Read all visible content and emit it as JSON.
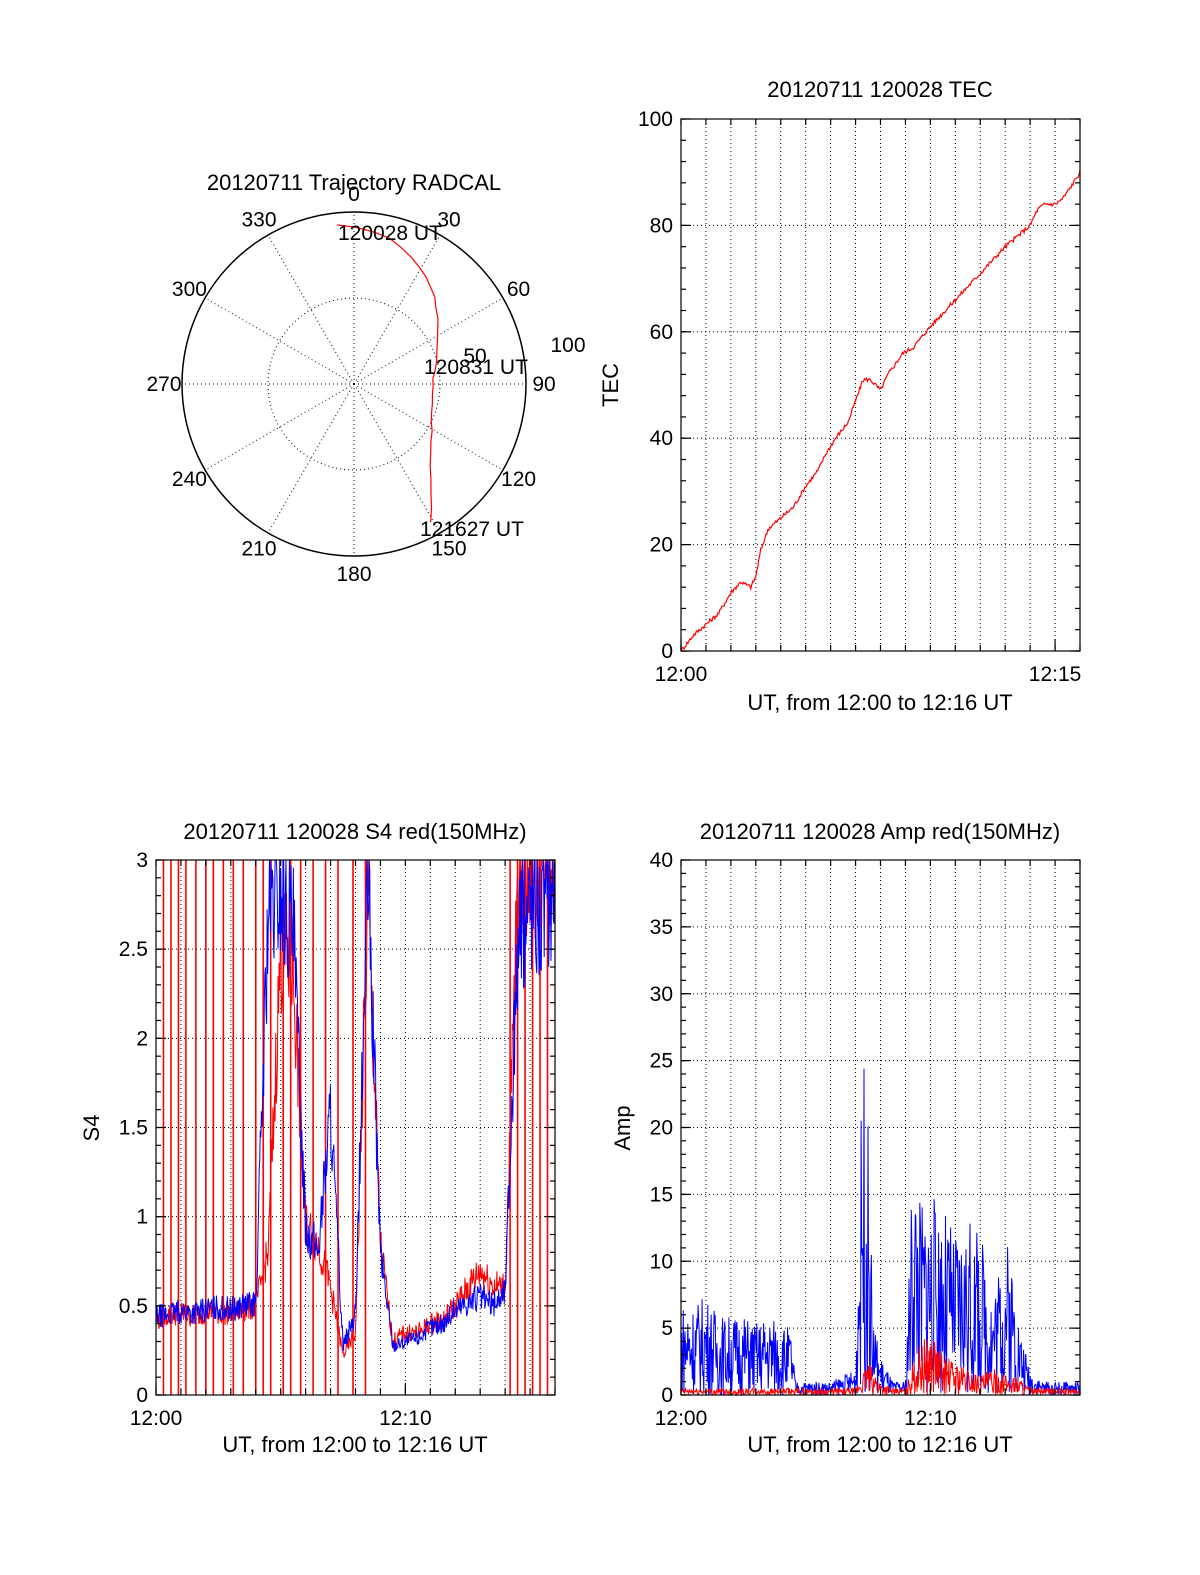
{
  "colors": {
    "red": "#ff0000",
    "blue": "#0000ff",
    "axis": "#000000",
    "background": "#ffffff"
  },
  "chart_data": [
    {
      "type": "polar",
      "id": "trajectory",
      "title": "20120711 Trajectory RADCAL",
      "angle_labels": [
        "0",
        "30",
        "60",
        "90",
        "120",
        "150",
        "180",
        "210",
        "240",
        "270",
        "300",
        "330"
      ],
      "radial_labels": [
        "50",
        "100"
      ],
      "rlim": [
        0,
        100
      ],
      "grid": true,
      "series": [
        {
          "color": "red",
          "azimuth_deg": [
            -6,
            1,
            8,
            14,
            19,
            24,
            29,
            34,
            38,
            43,
            47,
            52,
            57,
            62,
            68,
            74,
            80,
            86,
            92,
            98,
            104,
            110,
            116,
            121,
            127,
            132,
            137,
            141,
            145,
            148,
            151
          ],
          "elevation_r": [
            93,
            91,
            89,
            87,
            84,
            81,
            78,
            75,
            72,
            69,
            65,
            62,
            58,
            55,
            52,
            50,
            48,
            46,
            46,
            46,
            47,
            48,
            50,
            53,
            56,
            60,
            65,
            71,
            78,
            85,
            92
          ]
        }
      ],
      "annotations": [
        "120028 UT",
        "120831 UT",
        "121627 UT"
      ]
    },
    {
      "type": "line",
      "id": "tec",
      "title": "20120711 120028 TEC",
      "xlabel": "UT, from 12:00 to 12:16 UT",
      "ylabel": "TEC",
      "x_tick_labels": [
        "12:00",
        "12:15"
      ],
      "xlim": [
        0,
        16
      ],
      "ylim": [
        0,
        100
      ],
      "y_ticks": [
        0,
        20,
        40,
        60,
        80,
        100
      ],
      "grid": true,
      "series": [
        {
          "color": "red",
          "x": [
            0,
            0.5,
            1,
            1.5,
            2,
            2.4,
            2.8,
            3.0,
            3.2,
            3.5,
            4.0,
            4.5,
            5.0,
            5.5,
            5.8,
            6.2,
            6.7,
            7.0,
            7.3,
            7.6,
            8.0,
            8.3,
            8.6,
            8.9,
            9.3,
            10.0,
            11.0,
            12.0,
            13.0,
            14.0,
            14.3,
            14.6,
            15.0,
            15.3,
            15.6,
            16.0
          ],
          "y": [
            0,
            3,
            5,
            7,
            11,
            13,
            12,
            14,
            19,
            23,
            25,
            27,
            31,
            34,
            37,
            40,
            43,
            47,
            51,
            51,
            49,
            52,
            54,
            56,
            57,
            61,
            66,
            71,
            76,
            80,
            83,
            84,
            84,
            85,
            87,
            90
          ]
        }
      ]
    },
    {
      "type": "line",
      "id": "s4",
      "title": "20120711 120028 S4 red(150MHz)",
      "xlabel": "UT, from 12:00 to 12:16 UT",
      "ylabel": "S4",
      "x_tick_labels": [
        "12:00",
        "12:10"
      ],
      "xlim": [
        0,
        16
      ],
      "ylim": [
        0,
        3
      ],
      "y_tick_labels": [
        "0",
        "0.5",
        "1",
        "1.5",
        "2",
        "2.5",
        "3"
      ],
      "grid": true,
      "series": [
        {
          "color": "red",
          "x": [
            0.0,
            0.5,
            1.0,
            1.5,
            2.0,
            2.5,
            3.0,
            3.5,
            4.0,
            4.5,
            5.0,
            5.5,
            6.0,
            6.5,
            7.0,
            7.5,
            8.0,
            8.5,
            9.0,
            9.5,
            10.0,
            10.5,
            11.0,
            11.5,
            12.0,
            12.5,
            13.0,
            13.5,
            14.0,
            14.5,
            15.0,
            15.5,
            16.0
          ],
          "y": [
            0.42,
            0.45,
            0.46,
            0.44,
            0.47,
            0.46,
            0.46,
            0.48,
            0.5,
            0.8,
            2.5,
            2.4,
            0.95,
            0.85,
            0.6,
            0.22,
            0.35,
            2.8,
            0.85,
            0.3,
            0.35,
            0.35,
            0.4,
            0.42,
            0.5,
            0.6,
            0.7,
            0.62,
            0.6,
            2.8,
            3.0,
            3.0,
            3.0
          ]
        },
        {
          "color": "blue",
          "x": [
            0.0,
            0.5,
            1.0,
            1.5,
            2.0,
            2.5,
            3.0,
            3.5,
            4.0,
            4.5,
            5.0,
            5.5,
            6.0,
            6.5,
            7.0,
            7.5,
            8.0,
            8.5,
            9.0,
            9.5,
            10.0,
            10.5,
            11.0,
            11.5,
            12.0,
            12.5,
            13.0,
            13.5,
            14.0,
            14.5,
            15.0,
            15.5,
            16.0
          ],
          "y": [
            0.44,
            0.45,
            0.47,
            0.46,
            0.48,
            0.49,
            0.48,
            0.5,
            0.51,
            2.7,
            2.8,
            2.6,
            0.95,
            0.8,
            1.6,
            0.28,
            0.45,
            2.9,
            0.8,
            0.28,
            0.3,
            0.32,
            0.38,
            0.4,
            0.48,
            0.52,
            0.55,
            0.5,
            0.58,
            2.5,
            2.8,
            2.7,
            2.9
          ]
        }
      ]
    },
    {
      "type": "line",
      "id": "amp",
      "title": "20120711 120028 Amp red(150MHz)",
      "xlabel": "UT, from 12:00 to 12:16 UT",
      "ylabel": "Amp",
      "x_tick_labels": [
        "12:00",
        "12:10"
      ],
      "xlim": [
        0,
        16
      ],
      "ylim": [
        0,
        40
      ],
      "y_ticks": [
        0,
        5,
        10,
        15,
        20,
        25,
        30,
        35,
        40
      ],
      "grid": true,
      "series": [
        {
          "color": "blue",
          "x": [
            0.0,
            0.5,
            1.0,
            1.5,
            2.0,
            2.5,
            3.0,
            3.5,
            4.0,
            4.4,
            4.6,
            5.0,
            5.5,
            6.0,
            6.5,
            7.0,
            7.3,
            7.5,
            7.7,
            8.0,
            8.5,
            9.0,
            9.3,
            9.6,
            10.0,
            10.5,
            11.0,
            11.5,
            12.0,
            12.5,
            13.0,
            13.3,
            13.6,
            14.0,
            14.5,
            15.0,
            15.5,
            16.0
          ],
          "y": [
            7,
            7,
            7.5,
            6,
            6,
            6,
            5.5,
            6,
            5.5,
            5,
            1,
            1,
            1,
            1,
            1.5,
            2,
            27,
            20,
            6,
            3,
            1,
            1,
            19,
            15,
            15,
            14,
            12,
            13,
            12,
            8,
            12,
            10,
            5,
            2,
            1,
            1,
            1,
            1
          ]
        },
        {
          "color": "red",
          "x": [
            0.0,
            1.0,
            2.0,
            3.0,
            4.0,
            5.0,
            6.0,
            7.0,
            7.5,
            8.0,
            8.5,
            9.0,
            9.5,
            10.0,
            10.5,
            11.0,
            11.5,
            12.0,
            12.5,
            13.0,
            13.5,
            14.0,
            15.0,
            16.0
          ],
          "y": [
            0.5,
            0.5,
            0.5,
            0.5,
            0.5,
            0.5,
            0.5,
            0.5,
            2.5,
            1,
            0.5,
            0.5,
            3.5,
            5,
            3,
            2.5,
            2,
            1.5,
            2,
            1.5,
            1.5,
            0.5,
            0.5,
            0.5
          ]
        }
      ]
    }
  ]
}
